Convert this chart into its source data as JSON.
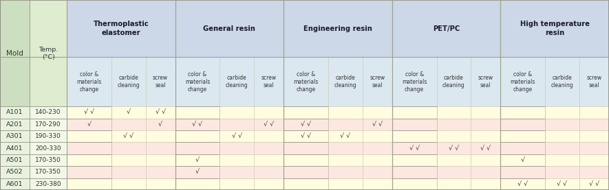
{
  "col0_header": "Mold",
  "col1_header": "Temp.\n(°C)",
  "group_labels": [
    "Thermoplastic\nelastomer",
    "General resin",
    "Engineering resin",
    "PET/PC",
    "High temperature\nresin"
  ],
  "sub_headers": [
    "color &\nmaterials\nchange",
    "carbide\ncleaning",
    "screw\nseal"
  ],
  "rows": [
    {
      "mold": "A101",
      "temp": "140-230",
      "values": [
        "√ √",
        "√",
        "√ √",
        "",
        "",
        "",
        "",
        "",
        "",
        "",
        "",
        "",
        "",
        "",
        ""
      ]
    },
    {
      "mold": "A201",
      "temp": "170-290",
      "values": [
        "√",
        "",
        "√",
        "√ √",
        "",
        "√ √",
        "√ √",
        "",
        "√ √",
        "",
        "",
        "",
        "",
        "",
        ""
      ]
    },
    {
      "mold": "A301",
      "temp": "190-330",
      "values": [
        "",
        "√ √",
        "",
        "",
        "√ √",
        "",
        "√ √",
        "√ √",
        "",
        "",
        "",
        "",
        "",
        "",
        ""
      ]
    },
    {
      "mold": "A401",
      "temp": "200-330",
      "values": [
        "",
        "",
        "",
        "",
        "",
        "",
        "",
        "",
        "",
        "√ √",
        "√ √",
        "√ √",
        "",
        "",
        ""
      ]
    },
    {
      "mold": "A501",
      "temp": "170-350",
      "values": [
        "",
        "",
        "",
        "√",
        "",
        "",
        "",
        "",
        "",
        "",
        "",
        "",
        "√",
        "",
        ""
      ]
    },
    {
      "mold": "A502",
      "temp": "170-350",
      "values": [
        "",
        "",
        "",
        "√",
        "",
        "",
        "",
        "",
        "",
        "",
        "",
        "",
        "",
        "",
        ""
      ]
    },
    {
      "mold": "A601",
      "temp": "230-380",
      "values": [
        "",
        "",
        "",
        "",
        "",
        "",
        "",
        "",
        "",
        "",
        "",
        "",
        "√ √",
        "√ √",
        "√ √"
      ]
    }
  ],
  "col0_bg": "#ccdfc0",
  "col1_bg": "#deecd0",
  "header_group_bg": "#ccd8e8",
  "subheader_bg": "#dce8f0",
  "row_bg": [
    "#fffce0",
    "#fce8e0"
  ],
  "mold_col_bg": [
    "#e8f2e0",
    "#e8f2e0"
  ],
  "temp_col_bg": [
    "#f0f7e8",
    "#f0f7e8"
  ],
  "border_light": "#c8c8b0",
  "border_group": "#a0a090",
  "col_widths_raw": [
    52,
    65,
    78,
    60,
    52,
    78,
    60,
    52,
    78,
    60,
    52,
    78,
    60,
    52,
    78,
    60,
    52
  ]
}
